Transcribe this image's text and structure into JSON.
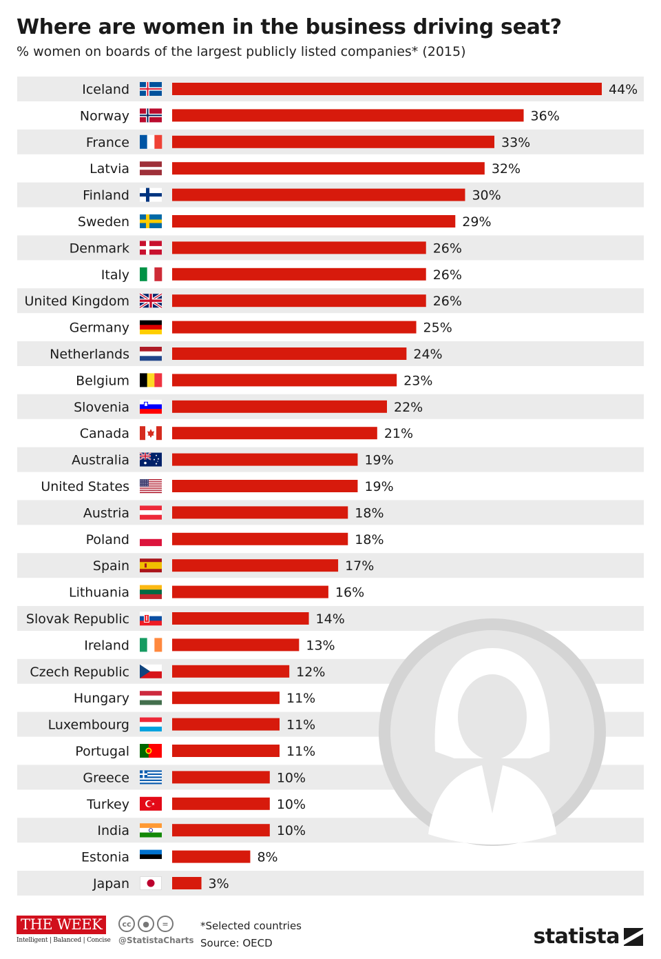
{
  "header": {
    "title": "Where are women in the business driving seat?",
    "subtitle": "% women on boards of the largest publicly listed companies* (2015)"
  },
  "chart_data": {
    "type": "bar",
    "orientation": "horizontal",
    "title": "Where are women in the business driving seat?",
    "subtitle": "% women on boards of the largest publicly listed companies* (2015)",
    "unit": "%",
    "xlim": [
      0,
      44
    ],
    "grid": false,
    "bar_color": "#d71a0c",
    "row_stripe_color": "#ebebeb",
    "categories": [
      "Iceland",
      "Norway",
      "France",
      "Latvia",
      "Finland",
      "Sweden",
      "Denmark",
      "Italy",
      "United Kingdom",
      "Germany",
      "Netherlands",
      "Belgium",
      "Slovenia",
      "Canada",
      "Australia",
      "United States",
      "Austria",
      "Poland",
      "Spain",
      "Lithuania",
      "Slovak Republic",
      "Ireland",
      "Czech Republic",
      "Hungary",
      "Luxembourg",
      "Portugal",
      "Greece",
      "Turkey",
      "India",
      "Estonia",
      "Japan"
    ],
    "values": [
      44,
      36,
      33,
      32,
      30,
      29,
      26,
      26,
      26,
      25,
      24,
      23,
      22,
      21,
      19,
      19,
      18,
      18,
      17,
      16,
      14,
      13,
      12,
      11,
      11,
      11,
      10,
      10,
      10,
      8,
      3
    ],
    "labels": [
      "44%",
      "36%",
      "33%",
      "32%",
      "30%",
      "29%",
      "26%",
      "26%",
      "26%",
      "25%",
      "24%",
      "23%",
      "22%",
      "21%",
      "19%",
      "19%",
      "18%",
      "18%",
      "17%",
      "16%",
      "14%",
      "13%",
      "12%",
      "11%",
      "11%",
      "11%",
      "10%",
      "10%",
      "10%",
      "8%",
      "3%"
    ],
    "flags": [
      "iceland-flag",
      "norway-flag",
      "france-flag",
      "latvia-flag",
      "finland-flag",
      "sweden-flag",
      "denmark-flag",
      "italy-flag",
      "uk-flag",
      "germany-flag",
      "netherlands-flag",
      "belgium-flag",
      "slovenia-flag",
      "canada-flag",
      "australia-flag",
      "usa-flag",
      "austria-flag",
      "poland-flag",
      "spain-flag",
      "lithuania-flag",
      "slovakia-flag",
      "ireland-flag",
      "czech-flag",
      "hungary-flag",
      "luxembourg-flag",
      "portugal-flag",
      "greece-flag",
      "turkey-flag",
      "india-flag",
      "estonia-flag",
      "japan-flag"
    ]
  },
  "footer": {
    "week_logo": "THE WEEK",
    "week_tagline": "Intelligent | Balanced | Concise",
    "cc_handle": "@StatistaCharts",
    "note": "*Selected countries",
    "source": "Source: OECD",
    "brand": "statista"
  }
}
